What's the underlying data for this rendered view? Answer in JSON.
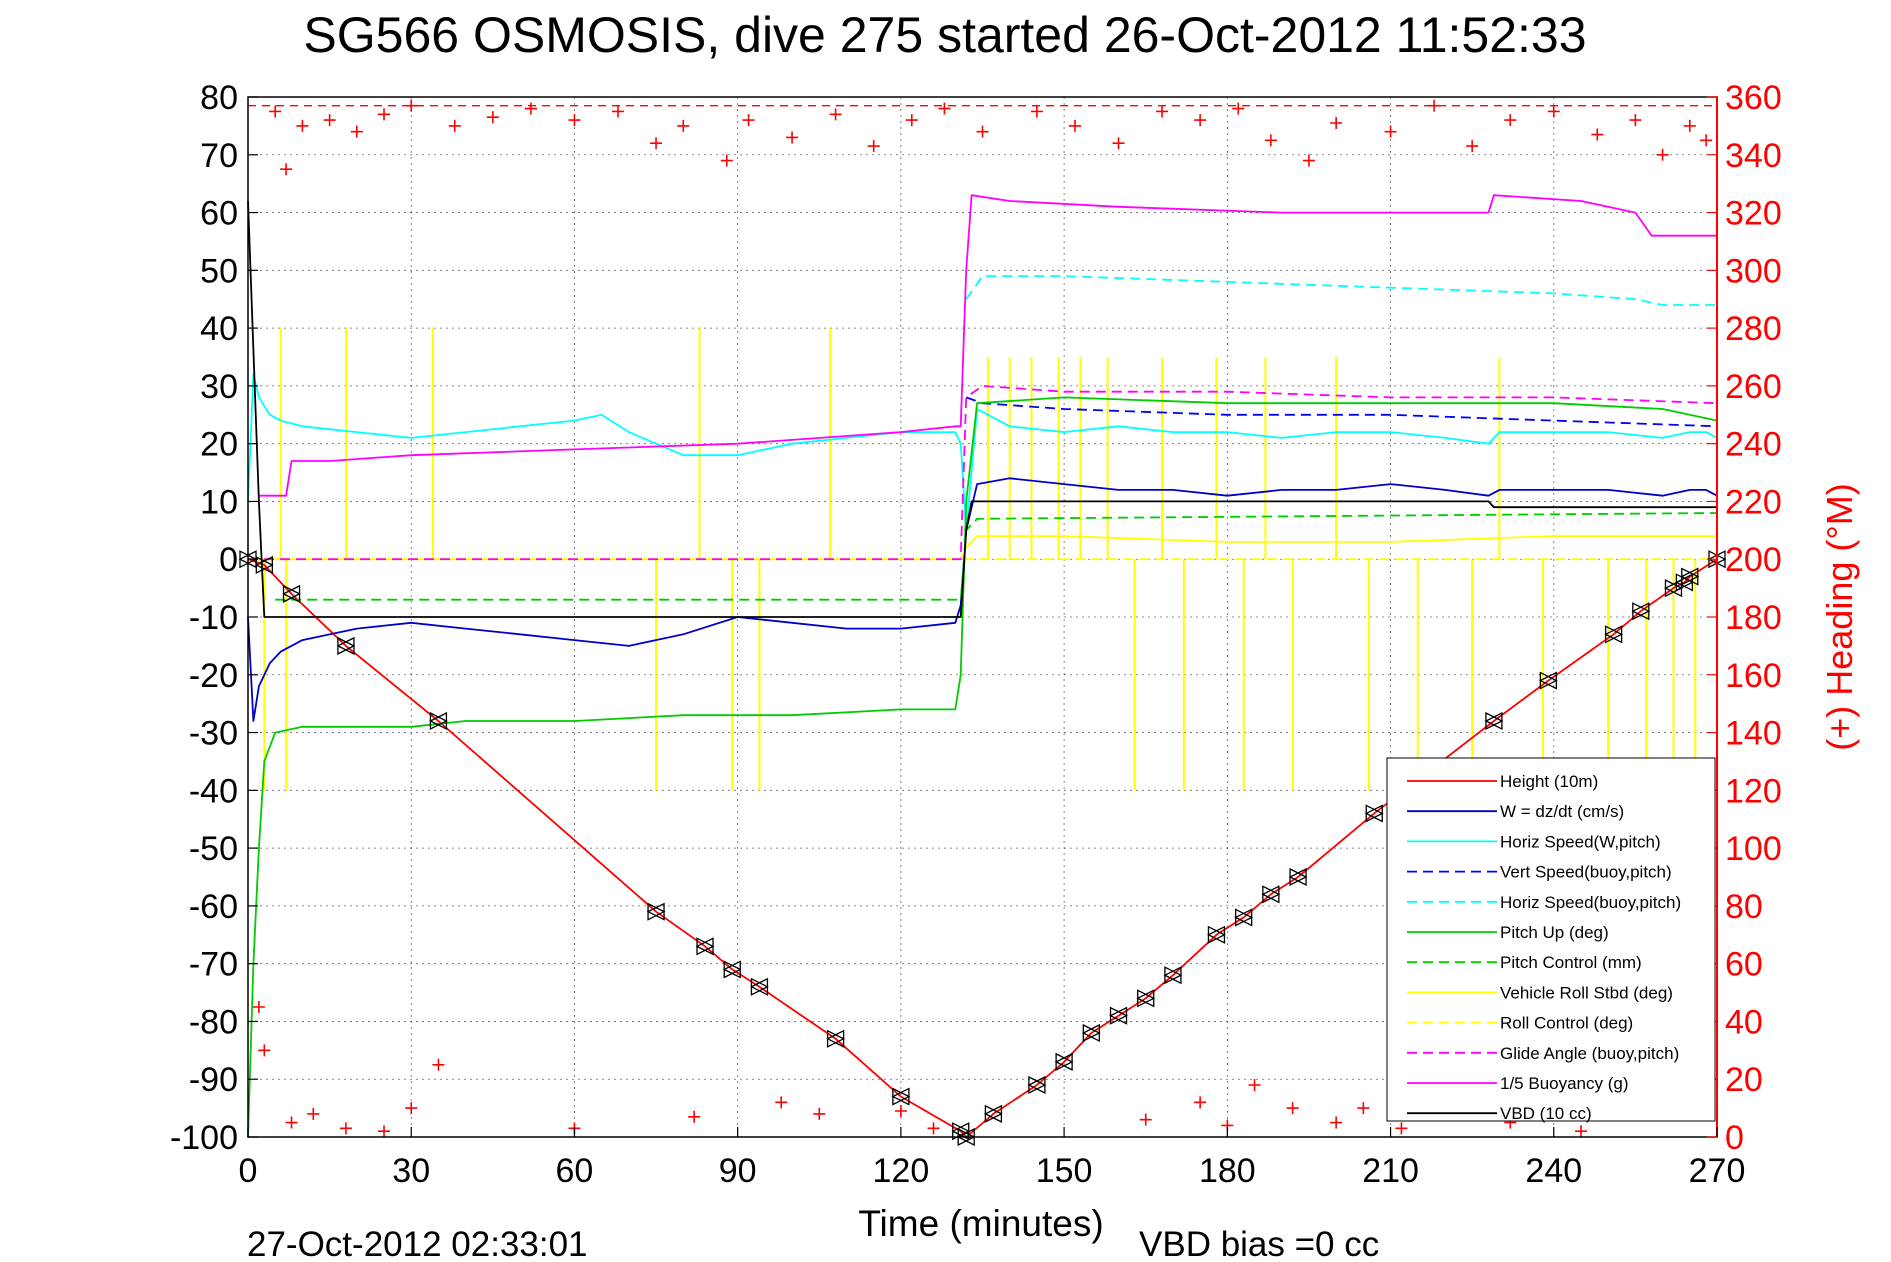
{
  "chart_data": {
    "type": "line",
    "title": "SG566 OSMOSIS, dive 275 started 26-Oct-2012 11:52:33",
    "xlabel": "Time (minutes)",
    "ylabel": "",
    "y2label": "(+) Heading (°M)",
    "xlim": [
      0,
      270
    ],
    "ylim": [
      -100,
      80
    ],
    "y2lim": [
      0,
      360
    ],
    "x_ticks": [
      "0",
      "30",
      "60",
      "90",
      "120",
      "150",
      "180",
      "210",
      "240",
      "270"
    ],
    "y_ticks": [
      "80",
      "70",
      "60",
      "50",
      "40",
      "30",
      "20",
      "10",
      "0",
      "-10",
      "-20",
      "-30",
      "-40",
      "-50",
      "-60",
      "-70",
      "-80",
      "-90",
      "-100"
    ],
    "y2_ticks": [
      "360",
      "340",
      "320",
      "300",
      "280",
      "260",
      "240",
      "220",
      "200",
      "180",
      "160",
      "140",
      "120",
      "100",
      "80",
      "60",
      "40",
      "20",
      "0"
    ],
    "grid": true,
    "legend_position": "bottom-right",
    "footer_left": "27-Oct-2012 02:33:01",
    "footer_right": "VBD bias =0 cc",
    "apogee_minutes": 132,
    "heading_reference_deg": 357,
    "colors": {
      "red": "#ff0000",
      "blue": "#0000cc",
      "cyan": "#00ffff",
      "green": "#00cc00",
      "yellow": "#ffff00",
      "magenta": "#ff00ff",
      "black": "#000000"
    },
    "series": [
      {
        "name": "Height (10m)",
        "color": "#ff0000",
        "style": "solid",
        "marker": "triangle",
        "x": [
          0,
          3,
          8,
          18,
          35,
          75,
          84,
          89,
          94,
          108,
          120,
          131,
          132,
          137,
          145,
          150,
          155,
          160,
          165,
          170,
          178,
          183,
          188,
          193,
          207,
          229,
          239,
          251,
          256,
          262,
          264,
          265,
          270
        ],
        "y": [
          0,
          -1,
          -6,
          -15,
          -28,
          -61,
          -67,
          -71,
          -74,
          -83,
          -93,
          -99,
          -100,
          -96,
          -91,
          -87,
          -82,
          -79,
          -76,
          -72,
          -65,
          -62,
          -58,
          -55,
          -44,
          -28,
          -21,
          -13,
          -9,
          -5,
          -4,
          -3,
          0
        ]
      },
      {
        "name": "W = dz/dt (cm/s)",
        "color": "#0000cc",
        "style": "solid",
        "x": [
          0,
          1,
          2,
          4,
          6,
          10,
          20,
          30,
          40,
          50,
          60,
          70,
          80,
          90,
          100,
          110,
          120,
          130,
          131,
          132,
          134,
          140,
          150,
          160,
          170,
          180,
          190,
          200,
          210,
          220,
          228,
          230,
          240,
          250,
          260,
          265,
          268,
          270
        ],
        "y": [
          -10,
          -28,
          -22,
          -18,
          -16,
          -14,
          -12,
          -11,
          -12,
          -13,
          -14,
          -15,
          -13,
          -10,
          -11,
          -12,
          -12,
          -11,
          -8,
          5,
          13,
          14,
          13,
          12,
          12,
          11,
          12,
          12,
          13,
          12,
          11,
          12,
          12,
          12,
          11,
          12,
          12,
          11
        ]
      },
      {
        "name": "Horiz Speed(W,pitch)",
        "color": "#00ffff",
        "style": "solid",
        "x": [
          0,
          1,
          2,
          4,
          6,
          10,
          20,
          30,
          40,
          50,
          60,
          65,
          70,
          80,
          90,
          100,
          110,
          120,
          130,
          131,
          132,
          134,
          140,
          150,
          160,
          170,
          180,
          190,
          200,
          210,
          220,
          228,
          230,
          240,
          250,
          260,
          265,
          268,
          270
        ],
        "y": [
          10,
          32,
          28,
          25,
          24,
          23,
          22,
          21,
          22,
          23,
          24,
          25,
          22,
          18,
          18,
          20,
          21,
          22,
          22,
          20,
          5,
          26,
          23,
          22,
          23,
          22,
          22,
          21,
          22,
          22,
          21,
          20,
          22,
          22,
          22,
          21,
          22,
          22,
          21
        ]
      },
      {
        "name": "Vert Speed(buoy,pitch)",
        "color": "#0000ff",
        "style": "dashed",
        "x": [
          132,
          135,
          150,
          180,
          210,
          240,
          270
        ],
        "y": [
          28,
          27,
          26,
          25,
          25,
          24,
          23
        ]
      },
      {
        "name": "Horiz Speed(buoy,pitch)",
        "color": "#00ffff",
        "style": "dashed",
        "x": [
          132,
          135,
          150,
          180,
          210,
          240,
          255,
          260,
          270
        ],
        "y": [
          45,
          49,
          49,
          48,
          47,
          46,
          45,
          44,
          44
        ]
      },
      {
        "name": "Pitch Up (deg)",
        "color": "#00cc00",
        "style": "solid",
        "x": [
          0,
          1,
          2,
          3,
          5,
          10,
          20,
          30,
          40,
          60,
          80,
          100,
          120,
          130,
          131,
          132,
          134,
          150,
          180,
          210,
          240,
          260,
          265,
          270
        ],
        "y": [
          -100,
          -70,
          -50,
          -35,
          -30,
          -29,
          -29,
          -29,
          -28,
          -28,
          -27,
          -27,
          -26,
          -26,
          -20,
          10,
          27,
          28,
          27,
          27,
          27,
          26,
          25,
          24
        ]
      },
      {
        "name": "Pitch Control (mm)",
        "color": "#00cc00",
        "style": "dashed",
        "x": [
          5,
          131,
          132,
          134,
          270
        ],
        "y": [
          -7,
          -7,
          5,
          7,
          8
        ]
      },
      {
        "name": "Vehicle Roll Stbd (deg)",
        "color": "#ffff00",
        "style": "solid",
        "x": [
          0,
          5,
          10,
          60,
          120,
          131,
          132,
          134,
          150,
          180,
          210,
          240,
          270
        ],
        "y": [
          0,
          0,
          0,
          0,
          0,
          0,
          2,
          4,
          4,
          3,
          3,
          4,
          4
        ]
      },
      {
        "name": "Roll Control (deg)",
        "color": "#ffff00",
        "style": "dashed",
        "x": [
          5,
          131,
          132,
          270
        ],
        "y": [
          0,
          0,
          0,
          0
        ]
      },
      {
        "name": "Glide Angle (buoy,pitch)",
        "color": "#ff00ff",
        "style": "dashed",
        "x": [
          0,
          131,
          132,
          135,
          150,
          180,
          210,
          240,
          270
        ],
        "y": [
          0,
          0,
          28,
          30,
          29,
          29,
          28,
          28,
          27
        ]
      },
      {
        "name": "1/5 Buoyancy (g)",
        "color": "#ff00ff",
        "style": "solid",
        "x": [
          2,
          7,
          8,
          15,
          30,
          60,
          90,
          120,
          130,
          131,
          132,
          133,
          140,
          160,
          190,
          205,
          228,
          229,
          245,
          255,
          258,
          270
        ],
        "y": [
          11,
          11,
          17,
          17,
          18,
          19,
          20,
          22,
          23,
          23,
          50,
          63,
          62,
          61,
          60,
          60,
          60,
          63,
          62,
          60,
          56,
          56
        ]
      },
      {
        "name": "VBD (10 cc)",
        "color": "#000000",
        "style": "solid",
        "x": [
          0,
          2,
          3,
          131,
          132,
          133,
          228,
          229,
          270
        ],
        "y": [
          62,
          10,
          -10,
          -10,
          5,
          10,
          10,
          9,
          9
        ]
      }
    ],
    "heading_points_top": [
      {
        "x": 5,
        "y": 355
      },
      {
        "x": 7,
        "y": 335
      },
      {
        "x": 10,
        "y": 350
      },
      {
        "x": 15,
        "y": 352
      },
      {
        "x": 20,
        "y": 348
      },
      {
        "x": 25,
        "y": 354
      },
      {
        "x": 30,
        "y": 357
      },
      {
        "x": 38,
        "y": 350
      },
      {
        "x": 45,
        "y": 353
      },
      {
        "x": 52,
        "y": 356
      },
      {
        "x": 60,
        "y": 352
      },
      {
        "x": 68,
        "y": 355
      },
      {
        "x": 75,
        "y": 344
      },
      {
        "x": 80,
        "y": 350
      },
      {
        "x": 88,
        "y": 338
      },
      {
        "x": 92,
        "y": 352
      },
      {
        "x": 100,
        "y": 346
      },
      {
        "x": 108,
        "y": 354
      },
      {
        "x": 115,
        "y": 343
      },
      {
        "x": 122,
        "y": 352
      },
      {
        "x": 128,
        "y": 356
      },
      {
        "x": 135,
        "y": 348
      },
      {
        "x": 145,
        "y": 355
      },
      {
        "x": 152,
        "y": 350
      },
      {
        "x": 160,
        "y": 344
      },
      {
        "x": 168,
        "y": 355
      },
      {
        "x": 175,
        "y": 352
      },
      {
        "x": 182,
        "y": 356
      },
      {
        "x": 188,
        "y": 345
      },
      {
        "x": 195,
        "y": 338
      },
      {
        "x": 200,
        "y": 351
      },
      {
        "x": 210,
        "y": 348
      },
      {
        "x": 218,
        "y": 357
      },
      {
        "x": 225,
        "y": 343
      },
      {
        "x": 232,
        "y": 352
      },
      {
        "x": 240,
        "y": 355
      },
      {
        "x": 248,
        "y": 347
      },
      {
        "x": 255,
        "y": 352
      },
      {
        "x": 260,
        "y": 340
      },
      {
        "x": 265,
        "y": 350
      },
      {
        "x": 268,
        "y": 345
      }
    ],
    "heading_points_bottom": [
      {
        "x": 2,
        "y": 45
      },
      {
        "x": 3,
        "y": 30
      },
      {
        "x": 8,
        "y": 5
      },
      {
        "x": 12,
        "y": 8
      },
      {
        "x": 18,
        "y": 3
      },
      {
        "x": 25,
        "y": 2
      },
      {
        "x": 30,
        "y": 10
      },
      {
        "x": 35,
        "y": 25
      },
      {
        "x": 60,
        "y": 3
      },
      {
        "x": 82,
        "y": 7
      },
      {
        "x": 98,
        "y": 12
      },
      {
        "x": 105,
        "y": 8
      },
      {
        "x": 120,
        "y": 9
      },
      {
        "x": 126,
        "y": 3
      },
      {
        "x": 165,
        "y": 6
      },
      {
        "x": 175,
        "y": 12
      },
      {
        "x": 180,
        "y": 4
      },
      {
        "x": 185,
        "y": 18
      },
      {
        "x": 192,
        "y": 10
      },
      {
        "x": 200,
        "y": 5
      },
      {
        "x": 205,
        "y": 10
      },
      {
        "x": 212,
        "y": 3
      },
      {
        "x": 220,
        "y": 8
      },
      {
        "x": 232,
        "y": 5
      },
      {
        "x": 238,
        "y": 15
      },
      {
        "x": 245,
        "y": 2
      },
      {
        "x": 255,
        "y": 8
      },
      {
        "x": 262,
        "y": 12
      },
      {
        "x": 268,
        "y": 20
      }
    ],
    "roll_spikes": [
      {
        "x": 3,
        "y": -40
      },
      {
        "x": 6,
        "y": 40
      },
      {
        "x": 7,
        "y": -40
      },
      {
        "x": 18,
        "y": 40
      },
      {
        "x": 34,
        "y": 40
      },
      {
        "x": 75,
        "y": -40
      },
      {
        "x": 83,
        "y": 40
      },
      {
        "x": 89,
        "y": -40
      },
      {
        "x": 94,
        "y": -40
      },
      {
        "x": 107,
        "y": 40
      },
      {
        "x": 136,
        "y": 35
      },
      {
        "x": 140,
        "y": 35
      },
      {
        "x": 144,
        "y": 35
      },
      {
        "x": 149,
        "y": 35
      },
      {
        "x": 153,
        "y": 35
      },
      {
        "x": 158,
        "y": 35
      },
      {
        "x": 163,
        "y": -40
      },
      {
        "x": 168,
        "y": 35
      },
      {
        "x": 172,
        "y": -40
      },
      {
        "x": 178,
        "y": 35
      },
      {
        "x": 183,
        "y": -40
      },
      {
        "x": 187,
        "y": 35
      },
      {
        "x": 192,
        "y": -40
      },
      {
        "x": 200,
        "y": 35
      },
      {
        "x": 206,
        "y": -40
      },
      {
        "x": 215,
        "y": -40
      },
      {
        "x": 225,
        "y": -40
      },
      {
        "x": 230,
        "y": 35
      },
      {
        "x": 238,
        "y": -40
      },
      {
        "x": 250,
        "y": -40
      },
      {
        "x": 257,
        "y": -40
      },
      {
        "x": 262,
        "y": -40
      },
      {
        "x": 266,
        "y": -40
      }
    ]
  }
}
